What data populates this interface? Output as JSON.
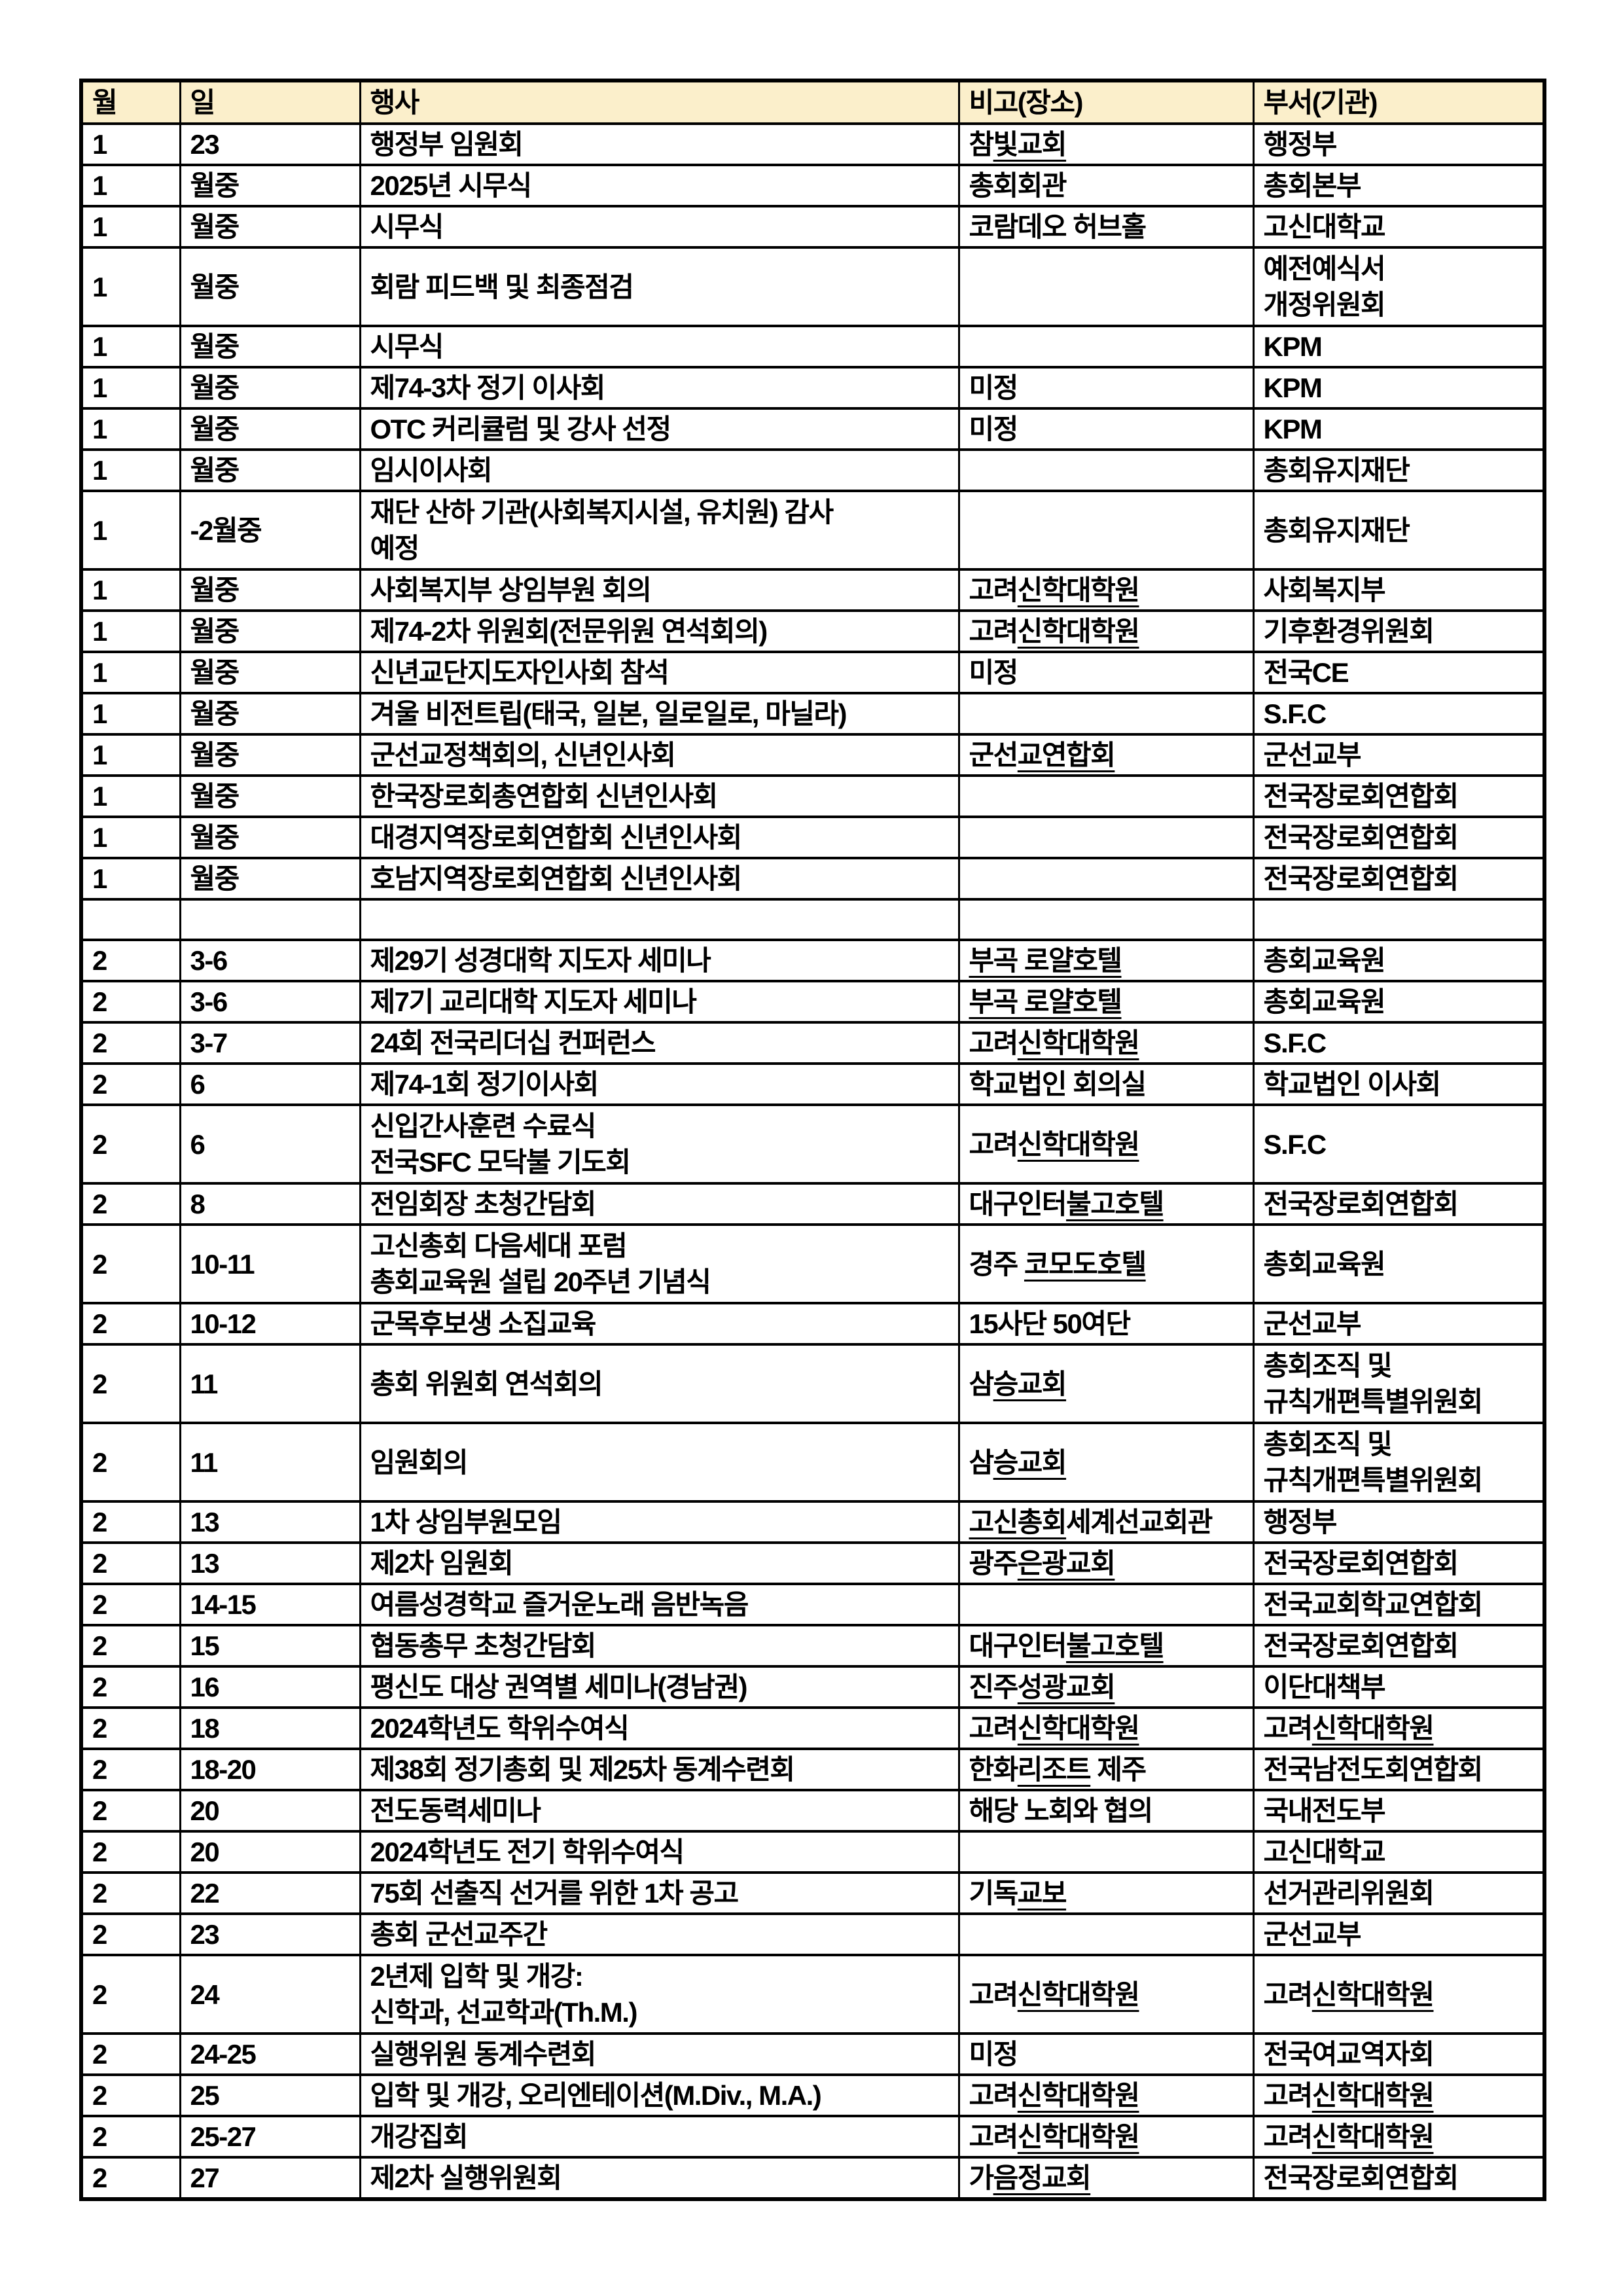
{
  "table": {
    "header_bg": "#FBEFCB",
    "border_color": "#000000",
    "headers": [
      "월",
      "일",
      "행사",
      "비고(장소)",
      "부서(기관)"
    ],
    "rows": [
      {
        "month": "1",
        "day": "23",
        "event": "행정부 임원회",
        "note": [
          {
            "t": "참"
          },
          {
            "t": "빛교회",
            "u": true
          }
        ],
        "dept": "행정부"
      },
      {
        "month": "1",
        "day": "월중",
        "event": "2025년 시무식",
        "note": "총회회관",
        "dept": "총회본부"
      },
      {
        "month": "1",
        "day": "월중",
        "event": "시무식",
        "note": "코람데오 허브홀",
        "dept": "고신대학교"
      },
      {
        "month": "1",
        "day": "월중",
        "event": "회람 피드백 및 최종점검",
        "note": "",
        "dept": "예전예식서\n개정위원회"
      },
      {
        "month": "1",
        "day": "월중",
        "event": "시무식",
        "note": "",
        "dept": "KPM"
      },
      {
        "month": "1",
        "day": "월중",
        "event": "제74-3차 정기 이사회",
        "note": "미정",
        "dept": "KPM"
      },
      {
        "month": "1",
        "day": "월중",
        "event": "OTC 커리큘럼 및 강사 선정",
        "note": "미정",
        "dept": "KPM"
      },
      {
        "month": "1",
        "day": "월중",
        "event": "임시이사회",
        "note": "",
        "dept": "총회유지재단"
      },
      {
        "month": "1",
        "day": "-2월중",
        "event": "재단 산하 기관(사회복지시설, 유치원) 감사\n예정",
        "note": "",
        "dept": "총회유지재단"
      },
      {
        "month": "1",
        "day": "월중",
        "event": "사회복지부 상임부원 회의",
        "note": [
          {
            "t": "고려"
          },
          {
            "t": "신학대학원",
            "u": true
          }
        ],
        "dept": "사회복지부"
      },
      {
        "month": "1",
        "day": "월중",
        "event": "제74-2차 위원회(전문위원 연석회의)",
        "note": [
          {
            "t": "고려"
          },
          {
            "t": "신학대학원",
            "u": true
          }
        ],
        "dept": "기후환경위원회"
      },
      {
        "month": "1",
        "day": "월중",
        "event": "신년교단지도자인사회 참석",
        "note": "미정",
        "dept": "전국CE"
      },
      {
        "month": "1",
        "day": "월중",
        "event": "겨울 비전트립(태국, 일본, 일로일로, 마닐라)",
        "note": "",
        "dept": "S.F.C"
      },
      {
        "month": "1",
        "day": "월중",
        "event": "군선교정책회의, 신년인사회",
        "note": [
          {
            "t": "군선"
          },
          {
            "t": "교연합회",
            "u": true
          }
        ],
        "dept": "군선교부"
      },
      {
        "month": "1",
        "day": "월중",
        "event": "한국장로회총연합회 신년인사회",
        "note": "",
        "dept": "전국장로회연합회"
      },
      {
        "month": "1",
        "day": "월중",
        "event": "대경지역장로회연합회 신년인사회",
        "note": "",
        "dept": "전국장로회연합회"
      },
      {
        "month": "1",
        "day": "월중",
        "event": "호남지역장로회연합회 신년인사회",
        "note": "",
        "dept": "전국장로회연합회"
      },
      {
        "month": "",
        "day": "",
        "event": "",
        "note": "",
        "dept": ""
      },
      {
        "month": "2",
        "day": "3-6",
        "event": "제29기 성경대학 지도자 세미나",
        "note": [
          {
            "t": "부곡 로얄호텔",
            "u": true
          }
        ],
        "dept": "총회교육원"
      },
      {
        "month": "2",
        "day": "3-6",
        "event": "제7기 교리대학 지도자 세미나",
        "note": [
          {
            "t": "부곡 로얄호텔",
            "u": true
          }
        ],
        "dept": "총회교육원"
      },
      {
        "month": "2",
        "day": "3-7",
        "event": "24회 전국리더십 컨퍼런스",
        "note": [
          {
            "t": "고려"
          },
          {
            "t": "신학대학원",
            "u": true
          }
        ],
        "dept": "S.F.C"
      },
      {
        "month": "2",
        "day": "6",
        "event": "제74-1회 정기이사회",
        "note": "학교법인 회의실",
        "dept": "학교법인 이사회"
      },
      {
        "month": "2",
        "day": "6",
        "event": "신입간사훈련 수료식\n전국SFC 모닥불 기도회",
        "note": [
          {
            "t": "고려"
          },
          {
            "t": "신학대학원",
            "u": true
          }
        ],
        "dept": "S.F.C"
      },
      {
        "month": "2",
        "day": "8",
        "event": "전임회장 초청간담회",
        "note": [
          {
            "t": "대구인터"
          },
          {
            "t": "불고호텔",
            "u": true
          }
        ],
        "dept": "전국장로회연합회"
      },
      {
        "month": "2",
        "day": "10-11",
        "event": "고신총회 다음세대 포럼\n총회교육원 설립 20주년 기념식",
        "note": [
          {
            "t": "경주 "
          },
          {
            "t": "코모도호텔",
            "u": true
          }
        ],
        "dept": "총회교육원"
      },
      {
        "month": "2",
        "day": "10-12",
        "event": "군목후보생 소집교육",
        "note": "15사단 50여단",
        "dept": "군선교부"
      },
      {
        "month": "2",
        "day": "11",
        "event": "총회 위원회 연석회의",
        "note": [
          {
            "t": "삼"
          },
          {
            "t": "승교회",
            "u": true
          }
        ],
        "dept": "총회조직 및\n규칙개편특별위원회"
      },
      {
        "month": "2",
        "day": "11",
        "event": "임원회의",
        "note": [
          {
            "t": "삼"
          },
          {
            "t": "승교회",
            "u": true
          }
        ],
        "dept": "총회조직 및\n규칙개편특별위원회"
      },
      {
        "month": "2",
        "day": "13",
        "event": "1차 상임부원모임",
        "note": [
          {
            "t": "고신총회",
            "u": true
          },
          {
            "t": "세계선교회관"
          }
        ],
        "dept": "행정부"
      },
      {
        "month": "2",
        "day": "13",
        "event": "제2차 임원회",
        "note": [
          {
            "t": "광주"
          },
          {
            "t": "은광교회",
            "u": true
          }
        ],
        "dept": "전국장로회연합회"
      },
      {
        "month": "2",
        "day": "14-15",
        "event": "여름성경학교 즐거운노래 음반녹음",
        "note": "",
        "dept": "전국교회학교연합회"
      },
      {
        "month": "2",
        "day": "15",
        "event": "협동총무 초청간담회",
        "note": [
          {
            "t": "대구인터"
          },
          {
            "t": "불고호텔",
            "u": true
          }
        ],
        "dept": "전국장로회연합회"
      },
      {
        "month": "2",
        "day": "16",
        "event": "평신도 대상 권역별 세미나(경남권)",
        "note": [
          {
            "t": "진주"
          },
          {
            "t": "성광교회",
            "u": true
          }
        ],
        "dept": "이단대책부"
      },
      {
        "month": "2",
        "day": "18",
        "event": "2024학년도 학위수여식",
        "note": [
          {
            "t": "고려"
          },
          {
            "t": "신학대학원",
            "u": true
          }
        ],
        "dept": [
          {
            "t": "고려"
          },
          {
            "t": "신학대학원",
            "u": true
          }
        ]
      },
      {
        "month": "2",
        "day": "18-20",
        "event": "제38회 정기총회 및 제25차 동계수련회",
        "note": [
          {
            "t": "한화"
          },
          {
            "t": "리조트",
            "u": true
          },
          {
            "t": " 제주"
          }
        ],
        "dept": "전국남전도회연합회"
      },
      {
        "month": "2",
        "day": "20",
        "event": "전도동력세미나",
        "note": "해당 노회와 협의",
        "dept": "국내전도부"
      },
      {
        "month": "2",
        "day": "20",
        "event": "2024학년도 전기 학위수여식",
        "note": "",
        "dept": "고신대학교"
      },
      {
        "month": "2",
        "day": "22",
        "event": "75회 선출직 선거를 위한 1차 공고",
        "note": [
          {
            "t": "기독"
          },
          {
            "t": "교보",
            "u": true
          }
        ],
        "dept": "선거관리위원회"
      },
      {
        "month": "2",
        "day": "23",
        "event": "총회 군선교주간",
        "note": "",
        "dept": "군선교부"
      },
      {
        "month": "2",
        "day": "24",
        "event": "2년제 입학 및 개강:\n신학과, 선교학과(Th.M.)",
        "note": [
          {
            "t": "고려"
          },
          {
            "t": "신학대학원",
            "u": true
          }
        ],
        "dept": [
          {
            "t": "고려"
          },
          {
            "t": "신학대학원",
            "u": true
          }
        ]
      },
      {
        "month": "2",
        "day": "24-25",
        "event": "실행위원 동계수련회",
        "note": "미정",
        "dept": "전국여교역자회"
      },
      {
        "month": "2",
        "day": "25",
        "event": "입학 및 개강, 오리엔테이션(M.Div., M.A.)",
        "note": [
          {
            "t": "고려"
          },
          {
            "t": "신학대학원",
            "u": true
          }
        ],
        "dept": [
          {
            "t": "고려"
          },
          {
            "t": "신학대학원",
            "u": true
          }
        ]
      },
      {
        "month": "2",
        "day": "25-27",
        "event": "개강집회",
        "note": [
          {
            "t": "고려"
          },
          {
            "t": "신학대학원",
            "u": true
          }
        ],
        "dept": [
          {
            "t": "고려"
          },
          {
            "t": "신학대학원",
            "u": true
          }
        ]
      },
      {
        "month": "2",
        "day": "27",
        "event": "제2차 실행위원회",
        "note": [
          {
            "t": "가"
          },
          {
            "t": "음정교회",
            "u": true
          }
        ],
        "dept": "전국장로회연합회"
      }
    ]
  }
}
